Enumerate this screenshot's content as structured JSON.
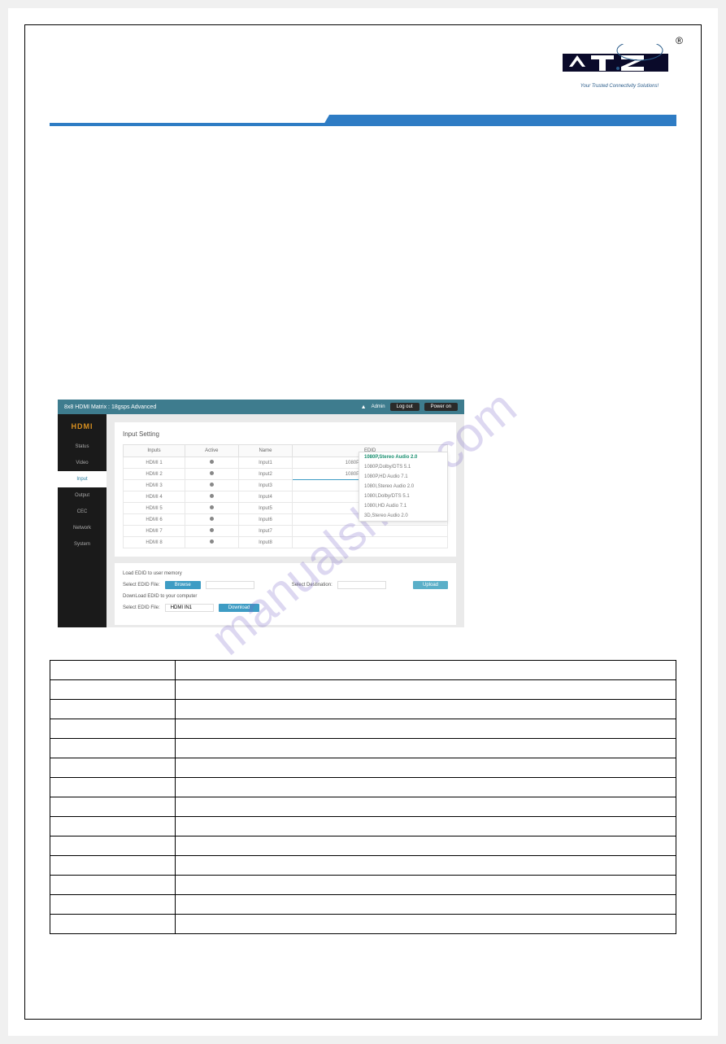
{
  "logo": {
    "tagline": "Your Trusted Connectivity Solutions!",
    "reg": "®"
  },
  "watermark": "manualshive.com",
  "screenshot": {
    "header": {
      "title": "8x8 HDMI Matrix : 18gsps Advanced",
      "admin": "Admin",
      "logout": "Log out",
      "power": "Power on"
    },
    "sidebar": {
      "logo": "HDMI",
      "items": [
        "Status",
        "Video",
        "Input",
        "Output",
        "CEC",
        "Network",
        "System"
      ],
      "active_index": 2
    },
    "panel1": {
      "title": "Input Setting",
      "headers": [
        "Inputs",
        "Active",
        "Name",
        "EDID"
      ],
      "rows": [
        {
          "input": "HDMI 1",
          "name": "Input1",
          "edid": "1080P,Stereo Audio 2.0"
        },
        {
          "input": "HDMI 2",
          "name": "Input2",
          "edid": "1080P,Stereo Audio 2.0"
        },
        {
          "input": "HDMI 3",
          "name": "Input3",
          "edid": ""
        },
        {
          "input": "HDMI 4",
          "name": "Input4",
          "edid": ""
        },
        {
          "input": "HDMI 5",
          "name": "Input5",
          "edid": ""
        },
        {
          "input": "HDMI 6",
          "name": "Input6",
          "edid": ""
        },
        {
          "input": "HDMI 7",
          "name": "Input7",
          "edid": ""
        },
        {
          "input": "HDMI 8",
          "name": "Input8",
          "edid": ""
        }
      ],
      "dropdown": [
        "1080P,Stereo Audio 2.0",
        "1080P,Dolby/DTS 5.1",
        "1080P,HD Audio 7.1",
        "1080I,Stereo Audio 2.0",
        "1080I,Dolby/DTS 5.1",
        "1080I,HD Audio 7.1",
        "3D,Stereo Audio 2.0"
      ]
    },
    "panel2": {
      "load_title": "Load EDID to user memory",
      "select_file": "Select EDID File:",
      "browse": "Browse",
      "select_dest": "Select Destination:",
      "upload": "Upload",
      "download_title": "DownLoad EDID to your computer",
      "select_file2": "Select EDID File:",
      "hdmi_in1": "HDMI IN1",
      "download": "Download"
    }
  },
  "table_rows": 14
}
